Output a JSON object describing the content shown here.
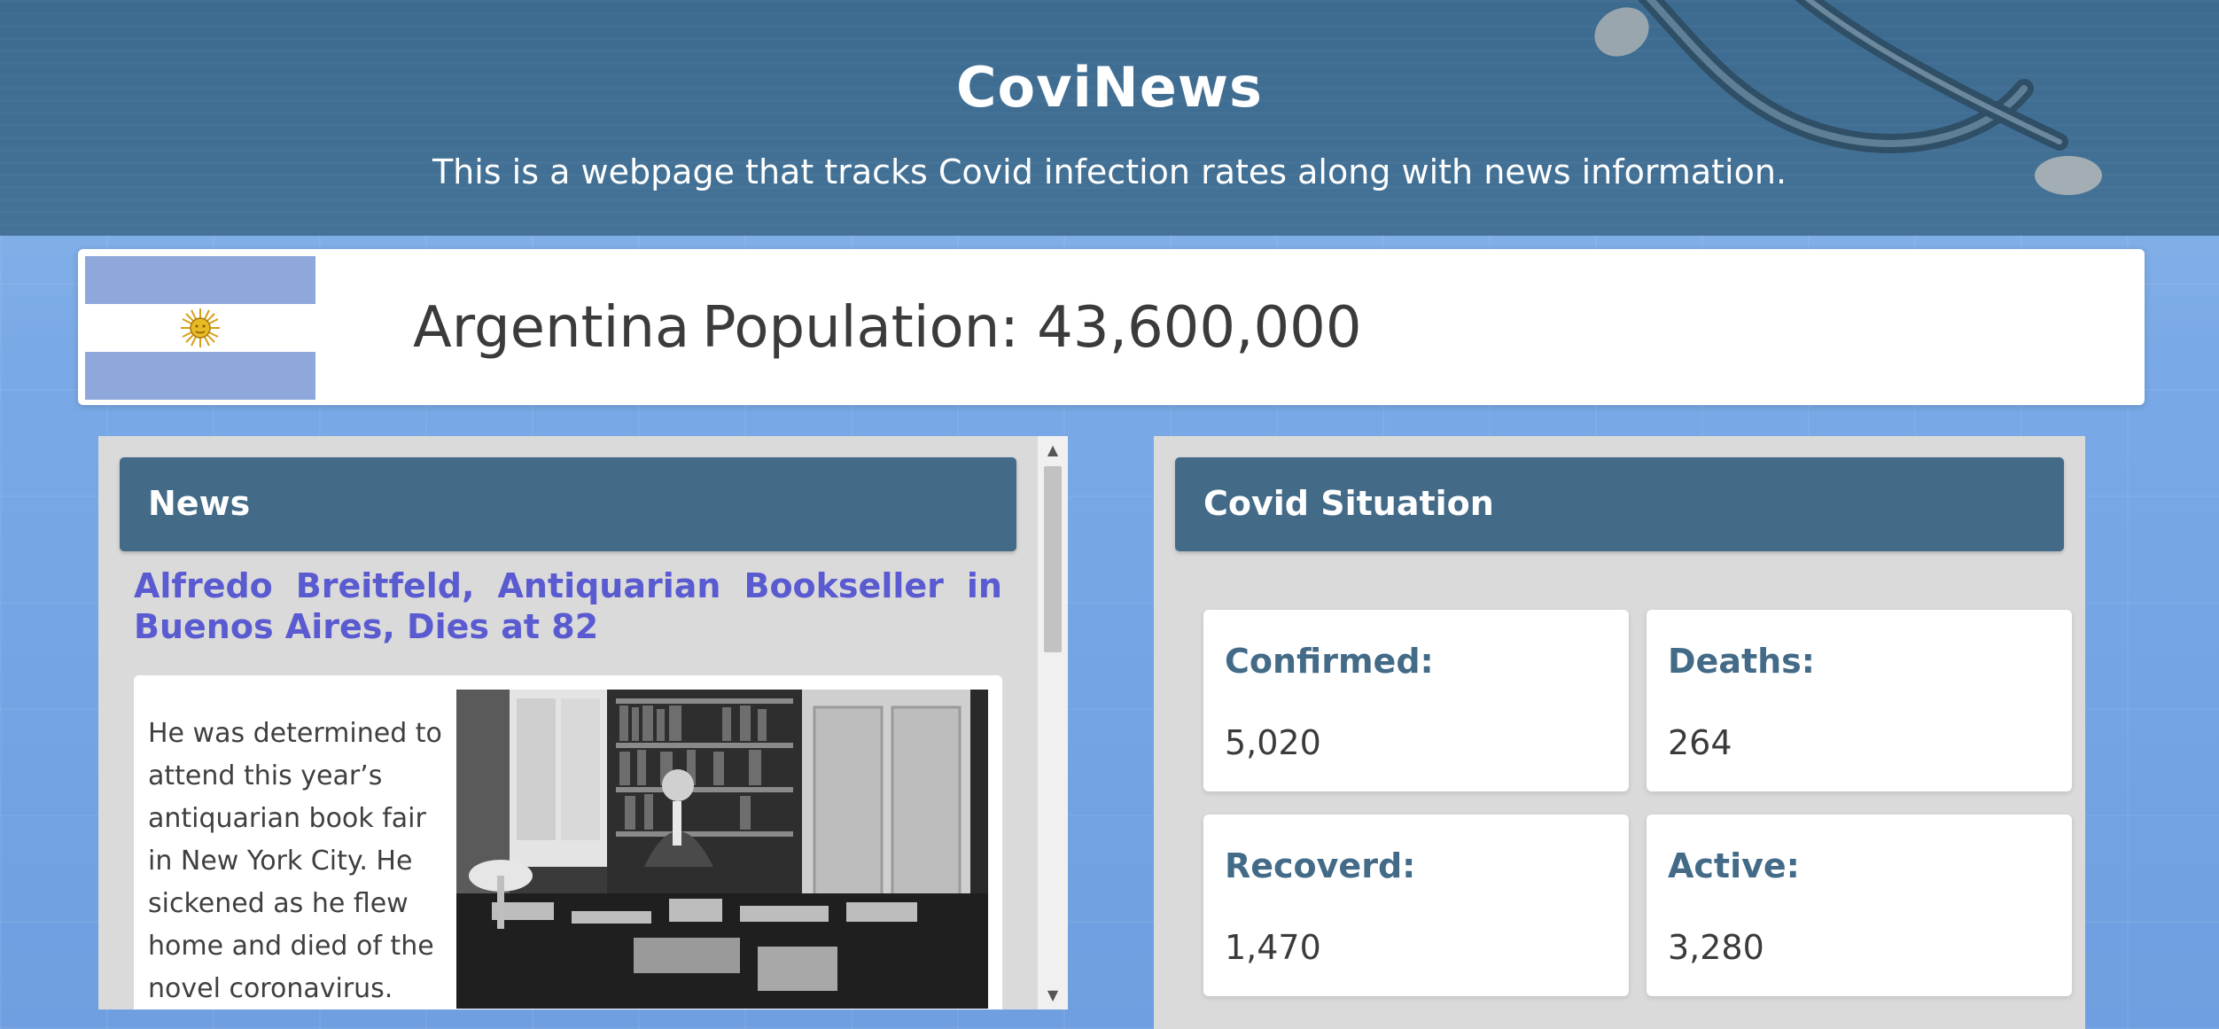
{
  "header": {
    "title": "CoviNews",
    "subtitle": "This is a webpage that tracks Covid infection rates along with news information."
  },
  "country": {
    "name": "Argentina",
    "population_label": "Population: 43,600,000"
  },
  "news": {
    "heading": "News",
    "article": {
      "title": "Alfredo Breitfeld, Antiquarian Bookseller in Buenos Aires, Dies at 82",
      "summary": "He was determined to attend this year’s antiquarian book fair in New York City. He sickened as he flew home and died of the novel coronavirus."
    }
  },
  "covid": {
    "heading": "Covid Situation",
    "stats": {
      "confirmed": {
        "label": "Confirmed:",
        "value": "5,020"
      },
      "deaths": {
        "label": "Deaths:",
        "value": "264"
      },
      "recovered": {
        "label": "Recoverd:",
        "value": "1,470"
      },
      "active": {
        "label": "Active:",
        "value": "3,280"
      }
    }
  },
  "colors": {
    "header_bg": "#416f94",
    "panel_header": "#436b88",
    "link": "#5a5ad1",
    "flag_blue": "#8ea8dc"
  }
}
